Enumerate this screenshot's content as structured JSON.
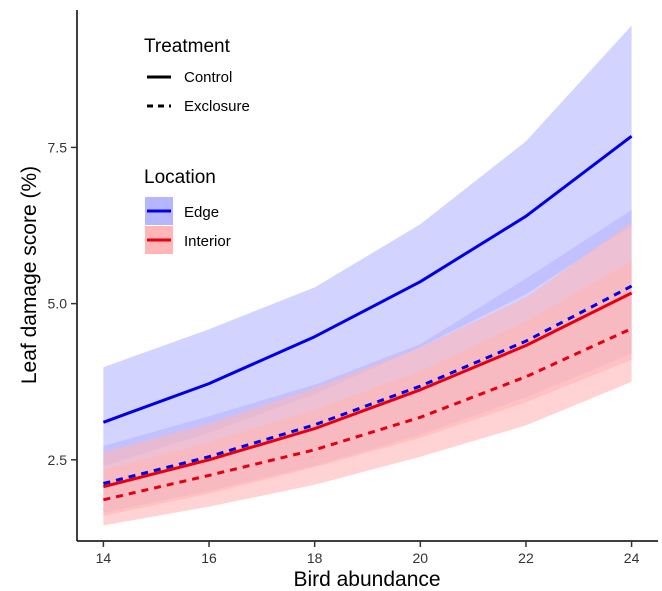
{
  "chart_data": {
    "type": "line",
    "xlabel": "Bird abundance",
    "ylabel": "Leaf damage score (%)",
    "xlim": [
      13.5,
      24.5
    ],
    "ylim": [
      1.2,
      9.7
    ],
    "x_ticks": [
      14,
      16,
      18,
      20,
      22,
      24
    ],
    "y_ticks": [
      2.5,
      5.0,
      7.5
    ],
    "y_tick_labels": [
      "2.5",
      "5.0",
      "7.5"
    ],
    "grid": false,
    "legend_placement": "top-left",
    "legends": [
      {
        "title": "Treatment",
        "entries": [
          {
            "label": "Control",
            "linetype": "solid"
          },
          {
            "label": "Exclosure",
            "linetype": "dashed"
          }
        ]
      },
      {
        "title": "Location",
        "entries": [
          {
            "label": "Edge",
            "color": "#0000e6"
          },
          {
            "label": "Interior",
            "color": "#e6000f"
          }
        ]
      }
    ],
    "x": [
      14,
      16,
      18,
      20,
      22,
      24
    ],
    "series": [
      {
        "location": "Edge",
        "treatment": "Control",
        "color": "#0000e6",
        "band_color": "#b6b6ff",
        "linetype": "solid",
        "values": [
          3.1,
          3.72,
          4.47,
          5.35,
          6.4,
          7.68
        ],
        "lower": [
          2.4,
          2.93,
          3.55,
          4.3,
          5.15,
          6.25
        ],
        "upper": [
          3.98,
          4.59,
          5.26,
          6.27,
          7.6,
          9.45
        ]
      },
      {
        "location": "Edge",
        "treatment": "Exclosure",
        "color": "#0000e6",
        "band_color": "#b6b6ff",
        "linetype": "dashed",
        "values": [
          2.12,
          2.55,
          3.06,
          3.68,
          4.4,
          5.28
        ],
        "lower": [
          1.65,
          2.0,
          2.4,
          2.9,
          3.5,
          4.2
        ],
        "upper": [
          2.72,
          3.2,
          3.7,
          4.35,
          5.4,
          6.5
        ]
      },
      {
        "location": "Interior",
        "treatment": "Control",
        "color": "#e6000f",
        "band_color": "#ffb6b6",
        "linetype": "solid",
        "values": [
          2.07,
          2.5,
          3.0,
          3.62,
          4.33,
          5.17
        ],
        "lower": [
          1.6,
          1.96,
          2.38,
          2.85,
          3.42,
          4.1
        ],
        "upper": [
          2.62,
          3.08,
          3.65,
          4.3,
          5.1,
          6.3
        ]
      },
      {
        "location": "Interior",
        "treatment": "Exclosure",
        "color": "#e6000f",
        "band_color": "#ffb6b6",
        "linetype": "dashed",
        "values": [
          1.86,
          2.25,
          2.66,
          3.18,
          3.83,
          4.6
        ],
        "lower": [
          1.45,
          1.75,
          2.1,
          2.55,
          3.05,
          3.75
        ],
        "upper": [
          2.33,
          2.78,
          3.3,
          3.92,
          4.72,
          5.68
        ]
      }
    ]
  }
}
